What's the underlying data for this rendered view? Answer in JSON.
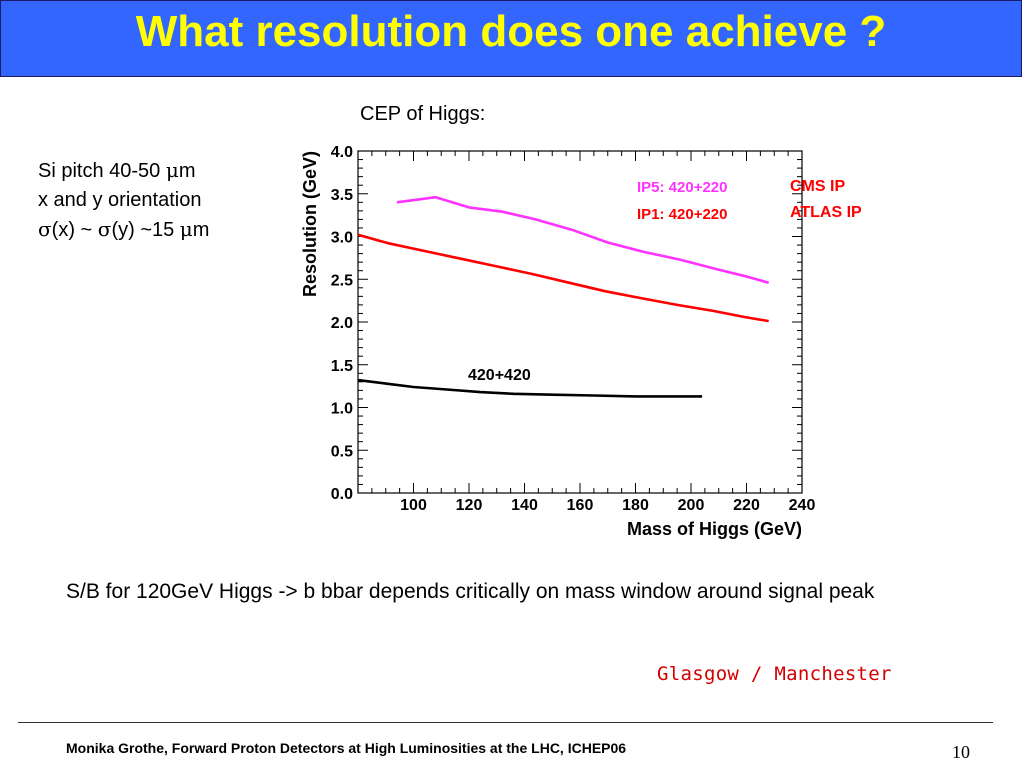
{
  "slide": {
    "title": "What resolution does one achieve ?",
    "subtitle": "CEP of Higgs:",
    "notes": {
      "line1_prefix": "Si pitch 40-50 ",
      "line1_mu": "μ",
      "line1_unit": "m",
      "line2": "x and y orientation",
      "line3_sigma1": "σ",
      "line3_mid1": "(x) ~ ",
      "line3_sigma2": "σ",
      "line3_mid2": "(y) ~15 ",
      "line3_mu": "μ",
      "line3_unit": "m"
    },
    "body_text": "S/B for 120GeV Higgs -> b bbar depends critically on mass window around signal peak",
    "credit": "Glasgow / Manchester",
    "footer": "Monika Grothe, Forward Proton Detectors at High Luminosities at the LHC, ICHEP06",
    "page_number": "10",
    "colors": {
      "title_bg": "#3366ff",
      "title_text": "#ffff00",
      "credit": "#d40000"
    }
  },
  "chart_data": {
    "type": "line",
    "xlabel": "Mass of Higgs (GeV)",
    "ylabel": "Resolution (GeV)",
    "xlim": [
      80,
      240
    ],
    "ylim": [
      0.0,
      4.0
    ],
    "x_ticks": [
      100,
      120,
      140,
      160,
      180,
      200,
      220,
      240
    ],
    "y_ticks": [
      0.0,
      0.5,
      1.0,
      1.5,
      2.0,
      2.5,
      3.0,
      3.5,
      4.0
    ],
    "x_tick_labels": [
      "100",
      "120",
      "140",
      "160",
      "180",
      "200",
      "220",
      "240"
    ],
    "y_tick_labels": [
      "0.0",
      "0.5",
      "1.0",
      "1.5",
      "2.0",
      "2.5",
      "3.0",
      "3.5",
      "4.0"
    ],
    "legend_labels": [
      {
        "label": "IP5: 420+220",
        "color": "#ff33ff"
      },
      {
        "label": "IP1: 420+220",
        "color": "#ff0000"
      }
    ],
    "annotations": [
      {
        "text": "CMS IP",
        "color": "#ff0000"
      },
      {
        "text": "ATLAS IP",
        "color": "#ff0000"
      },
      {
        "text": "420+420",
        "color": "#000000"
      }
    ],
    "series": [
      {
        "color": "#ff33ff",
        "x": [
          94,
          108,
          120,
          132,
          144,
          157,
          170,
          183,
          196,
          209,
          219,
          228
        ],
        "y": [
          3.4,
          3.46,
          3.34,
          3.29,
          3.2,
          3.08,
          2.93,
          2.82,
          2.73,
          2.62,
          2.54,
          2.46
        ]
      },
      {
        "color": "#ff0000",
        "x": [
          80,
          91,
          104,
          117,
          130,
          143,
          156,
          169,
          182,
          195,
          208,
          219,
          228
        ],
        "y": [
          3.02,
          2.92,
          2.83,
          2.74,
          2.65,
          2.56,
          2.46,
          2.36,
          2.28,
          2.2,
          2.13,
          2.06,
          2.01
        ]
      },
      {
        "color": "#000000",
        "x": [
          80,
          90,
          100,
          112,
          124,
          136,
          150,
          165,
          180,
          195,
          204
        ],
        "y": [
          1.32,
          1.28,
          1.24,
          1.21,
          1.18,
          1.16,
          1.15,
          1.14,
          1.13,
          1.13,
          1.13
        ]
      }
    ]
  }
}
